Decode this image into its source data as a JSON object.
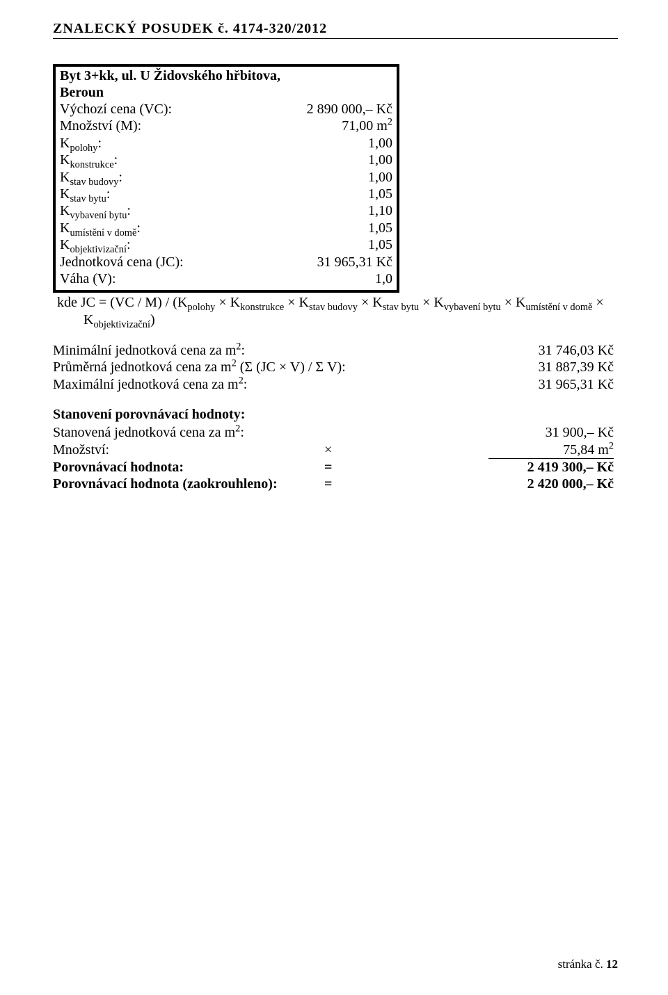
{
  "header": "ZNALECKÝ   POSUDEK č. 4174-320/2012",
  "box": {
    "title1": "Byt 3+kk, ul. U Židovského hřbitova,",
    "title2": "Beroun",
    "vc_label": "Výchozí cena (VC):",
    "vc_value": "2 890 000,–  Kč",
    "m_label": "Množství (M):",
    "m_value_html": "71,00 m<sup>2</sup>",
    "k_polohy_label_html": "K<sub>polohy</sub>:",
    "k_polohy_value": "1,00",
    "k_konstrukce_label_html": "K<sub>konstrukce</sub>:",
    "k_konstrukce_value": "1,00",
    "k_stav_budovy_label_html": "K<sub>stav budovy</sub>:",
    "k_stav_budovy_value": "1,00",
    "k_stav_bytu_label_html": "K<sub>stav bytu</sub>:",
    "k_stav_bytu_value": "1,05",
    "k_vybaveni_label_html": "K<sub>vybavení bytu</sub>:",
    "k_vybaveni_value": "1,10",
    "k_umisteni_label_html": "K<sub>umístění v domě</sub>:",
    "k_umisteni_value": "1,05",
    "k_obj_label_html": "K<sub>objektivizační</sub>:",
    "k_obj_value": "1,05",
    "jc_label": "Jednotková cena (JC):",
    "jc_value": "31 965,31 Kč",
    "vaha_label": "Váha (V):",
    "vaha_value": "1,0"
  },
  "formula_html": "kde JC = (VC / M) / (K<sub>polohy</sub> × K<sub>konstrukce</sub> × K<sub>stav budovy</sub> × K<sub>stav bytu</sub> × K<sub>vybavení bytu</sub> × K<sub>umístění v domě</sub> × K<sub>objektivizační</sub>)",
  "stats": {
    "min_label_html": "Minimální jednotková cena za m<sup>2</sup>:",
    "min_value": "31 746,03 Kč",
    "avg_label_html": "Průměrná jednotková cena za m<sup>2</sup> (Σ (JC × V)   /   Σ V):",
    "avg_value": "31 887,39 Kč",
    "max_label_html": "Maximální jednotková cena za m<sup>2</sup>:",
    "max_value": "31 965,31 Kč"
  },
  "section_heading": "Stanovení porovnávací hodnoty:",
  "results": {
    "stanovena_label_html": "Stanovená jednotková cena za m<sup>2</sup>:",
    "stanovena_value": "31 900,–  Kč",
    "mnozstvi_label": "Množství:",
    "mnozstvi_op": "×",
    "mnozstvi_value_html": "75,84 m<sup>2</sup>",
    "porov_label": "Porovnávací hodnota:",
    "porov_op": "=",
    "porov_value": "2 419 300,–  Kč",
    "porov_z_label": "Porovnávací hodnota (zaokrouhleno):",
    "porov_z_op": "=",
    "porov_z_value": "2 420 000,–  Kč"
  },
  "footer": {
    "label": "stránka č. ",
    "num": "12"
  }
}
